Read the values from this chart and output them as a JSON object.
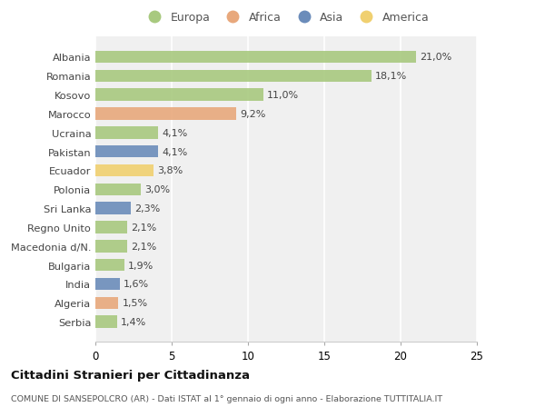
{
  "categories": [
    "Albania",
    "Romania",
    "Kosovo",
    "Marocco",
    "Ucraina",
    "Pakistan",
    "Ecuador",
    "Polonia",
    "Sri Lanka",
    "Regno Unito",
    "Macedonia d/N.",
    "Bulgaria",
    "India",
    "Algeria",
    "Serbia"
  ],
  "values": [
    21.0,
    18.1,
    11.0,
    9.2,
    4.1,
    4.1,
    3.8,
    3.0,
    2.3,
    2.1,
    2.1,
    1.9,
    1.6,
    1.5,
    1.4
  ],
  "labels": [
    "21,0%",
    "18,1%",
    "11,0%",
    "9,2%",
    "4,1%",
    "4,1%",
    "3,8%",
    "3,0%",
    "2,3%",
    "2,1%",
    "2,1%",
    "1,9%",
    "1,6%",
    "1,5%",
    "1,4%"
  ],
  "continents": [
    "Europa",
    "Europa",
    "Europa",
    "Africa",
    "Europa",
    "Asia",
    "America",
    "Europa",
    "Asia",
    "Europa",
    "Europa",
    "Europa",
    "Asia",
    "Africa",
    "Europa"
  ],
  "colors": {
    "Europa": "#a8c97f",
    "Africa": "#e8a87c",
    "Asia": "#6b8cba",
    "America": "#f0d070"
  },
  "legend_order": [
    "Europa",
    "Africa",
    "Asia",
    "America"
  ],
  "xlim": [
    0,
    25
  ],
  "xticks": [
    0,
    5,
    10,
    15,
    20,
    25
  ],
  "title": "Cittadini Stranieri per Cittadinanza",
  "subtitle": "COMUNE DI SANSEPOLCRO (AR) - Dati ISTAT al 1° gennaio di ogni anno - Elaborazione TUTTITALIA.IT",
  "background_color": "#ffffff",
  "plot_bg_color": "#f0f0f0"
}
